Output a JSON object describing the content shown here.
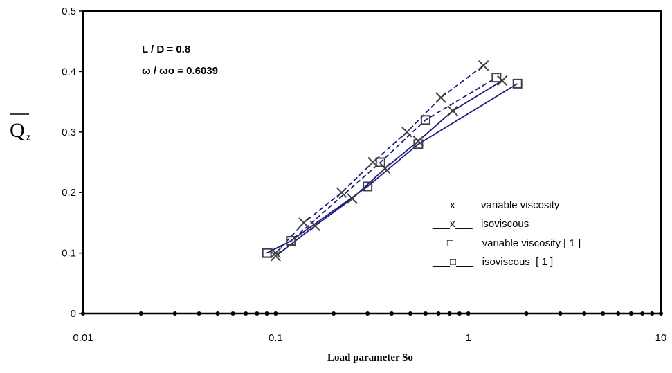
{
  "chart_data": {
    "type": "line",
    "title": "",
    "xlabel": "Load  parameter  So",
    "ylabel": "Q",
    "ylabel_subscript": "z",
    "x_scale": "log",
    "xlim": [
      0.01,
      10
    ],
    "ylim": [
      0,
      0.5
    ],
    "x_tick_labels": [
      "0.01",
      "0.1",
      "1",
      "10"
    ],
    "y_tick_labels": [
      "0",
      "0.1",
      "0.2",
      "0.3",
      "0.4",
      "0.5"
    ],
    "grid": false,
    "legend_position": "bottom-right",
    "annotations": [
      "L / D = 0.8",
      "ω / ωo = 0.6039"
    ],
    "series": [
      {
        "name": "variable viscosity",
        "legend_label": "_ _ x_ _    variable viscosity",
        "marker": "x",
        "line_style": "dashed",
        "x": [
          0.1,
          0.14,
          0.22,
          0.32,
          0.48,
          0.72,
          1.2
        ],
        "y": [
          0.1,
          0.15,
          0.2,
          0.25,
          0.3,
          0.357,
          0.41
        ]
      },
      {
        "name": "isoviscous",
        "legend_label": "___x___   isoviscous",
        "marker": "x",
        "line_style": "solid",
        "x": [
          0.1,
          0.16,
          0.25,
          0.37,
          0.55,
          0.83,
          1.5
        ],
        "y": [
          0.095,
          0.145,
          0.19,
          0.24,
          0.285,
          0.335,
          0.385
        ]
      },
      {
        "name": "variable viscosity [ 1 ]",
        "legend_label": "_ _□_ _     variable viscosity [ 1 ]",
        "marker": "square",
        "line_style": "dashed",
        "x": [
          0.09,
          0.12,
          0.35,
          0.6,
          1.4
        ],
        "y": [
          0.1,
          0.12,
          0.25,
          0.32,
          0.39
        ]
      },
      {
        "name": "isoviscous [ 1 ]",
        "legend_label": "___□___   isoviscous  [ 1 ]",
        "marker": "square",
        "line_style": "solid",
        "x": [
          0.09,
          0.12,
          0.3,
          0.55,
          1.8
        ],
        "y": [
          0.1,
          0.12,
          0.21,
          0.28,
          0.38
        ]
      }
    ],
    "colors": {
      "line": "#1a1a80",
      "marker": "#404040",
      "axis": "#000000"
    }
  }
}
